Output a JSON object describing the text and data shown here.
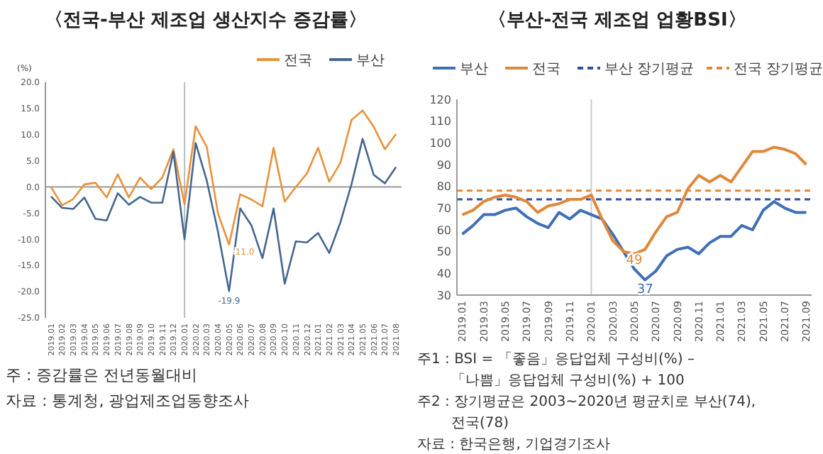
{
  "chart_data": [
    {
      "type": "line",
      "title": "〈전국-부산 제조업 생산지수 증감률〉",
      "ylabel": "(%)",
      "categories": [
        "2019.01",
        "2019.02",
        "2019.03",
        "2019.04",
        "2019.05",
        "2019.06",
        "2019.07",
        "2019.08",
        "2019.09",
        "2019.10",
        "2019.11",
        "2019.12",
        "2020.01",
        "2020.02",
        "2020.03",
        "2020.04",
        "2020.05",
        "2020.06",
        "2020.07",
        "2020.08",
        "2020.09",
        "2020.10",
        "2020.11",
        "2020.12",
        "2021.01",
        "2021.02",
        "2021.03",
        "2021.04",
        "2021.05",
        "2021.06",
        "2021.07",
        "2021.08"
      ],
      "series": [
        {
          "name": "전국",
          "color": "#e8923a",
          "values": [
            0.0,
            -3.5,
            -2.3,
            0.5,
            0.8,
            -2.0,
            2.4,
            -2.0,
            1.8,
            -0.4,
            1.8,
            7.2,
            -3.3,
            11.6,
            7.6,
            -5.0,
            -11.0,
            -1.4,
            -2.4,
            -3.7,
            7.5,
            -2.8,
            0.0,
            2.6,
            7.5,
            1.0,
            4.6,
            12.8,
            14.6,
            11.5,
            7.2,
            10.1
          ]
        },
        {
          "name": "부산",
          "color": "#44678f",
          "values": [
            -1.8,
            -4.0,
            -4.2,
            -2.0,
            -6.1,
            -6.4,
            -1.2,
            -3.4,
            -1.9,
            -3.0,
            -3.0,
            6.7,
            -10.0,
            8.4,
            1.2,
            -8.5,
            -19.9,
            -4.1,
            -7.3,
            -13.6,
            -4.1,
            -18.5,
            -10.4,
            -10.6,
            -8.8,
            -12.6,
            -6.8,
            0.5,
            9.2,
            2.3,
            0.7,
            3.8
          ]
        }
      ],
      "ylim": [
        -25,
        20
      ],
      "yticks": [
        {
          "value": -25,
          "label": "-25.0"
        },
        {
          "value": -20,
          "label": "-20.0"
        },
        {
          "value": -15,
          "label": "-15.0"
        },
        {
          "value": -10,
          "label": "-10.0"
        },
        {
          "value": -5,
          "label": "-5.0"
        },
        {
          "value": 0,
          "label": "0.0"
        },
        {
          "value": 5,
          "label": "5.0"
        },
        {
          "value": 10,
          "label": "10.0"
        },
        {
          "value": 15,
          "label": "15.0"
        },
        {
          "value": 20,
          "label": "20.0"
        }
      ],
      "ref_lines": [
        {
          "axis": "x",
          "value": "2020.01",
          "color": "#bbbbbb"
        }
      ],
      "annotations": [
        {
          "text": "-11.0",
          "x": "2020.05",
          "y": -11.0
        },
        {
          "text": "-19.9",
          "x": "2020.05",
          "y": -19.9
        },
        "주 : 증감률은 전년동월대비",
        "자료 : 통계청, 광업제조업동향조사"
      ],
      "legend": "top right",
      "grid": false,
      "marker": "none",
      "line_style": "solid"
    },
    {
      "type": "line",
      "title": "〈부산-전국 제조업 업황BSI〉",
      "categories": [
        "2019.01",
        null,
        "2019.03",
        null,
        "2019.05",
        null,
        "2019.07",
        null,
        "2019.09",
        null,
        "2019.11",
        null,
        "2020.01",
        null,
        "2020.03",
        null,
        "2020.05",
        null,
        "2020.07",
        null,
        "2020.09",
        null,
        "2020.11",
        null,
        "2021.01",
        null,
        "2021.03",
        null,
        "2021.05",
        null,
        "2021.07",
        null,
        "2021.09"
      ],
      "series": [
        {
          "name": "부산",
          "color": "#3f6fb5",
          "values": [
            58,
            62,
            67,
            67,
            69,
            70,
            66,
            63,
            61,
            68,
            65,
            69,
            67,
            65,
            58,
            50,
            42,
            37,
            41,
            48,
            51,
            52,
            49,
            54,
            57,
            57,
            62,
            60,
            69,
            73,
            70,
            68,
            68
          ]
        },
        {
          "name": "전국",
          "color": "#e0883a",
          "values": [
            67,
            69,
            73,
            75,
            76,
            75,
            73,
            68,
            71,
            72,
            74,
            74,
            76,
            65,
            55,
            50,
            49,
            51,
            59,
            66,
            68,
            79,
            85,
            82,
            85,
            82,
            89,
            96,
            96,
            98,
            97,
            95,
            90
          ]
        }
      ],
      "ylim": [
        30,
        120
      ],
      "yticks": [
        30,
        40,
        50,
        60,
        70,
        80,
        90,
        100,
        110,
        120
      ],
      "ref_lines": [
        {
          "axis": "y",
          "value": 74,
          "label": "부산 장기평균",
          "color": "#2f4f9f",
          "line_style": "dashed"
        },
        {
          "axis": "y",
          "value": 78,
          "label": "전국 장기평균",
          "color": "#e0883a",
          "line_style": "dashed"
        },
        {
          "axis": "x",
          "value": "2020.01",
          "color": "#cccccc"
        }
      ],
      "annotations": [
        {
          "text": "49",
          "x": "2020.05",
          "y": 49
        },
        {
          "text": "37",
          "y": 37
        },
        "주1 : BSI = 「좋음」응답업체 구성비(%) – 「나쁨」응답업체 구성비(%) + 100",
        "주2 : 장기평균은 2003~2020년 평균치로 부산(74), 전국(78)",
        "자료 : 한국은행, 기업경기조사"
      ],
      "legend": "top",
      "grid": false,
      "marker": "none",
      "line_style": "solid"
    }
  ]
}
